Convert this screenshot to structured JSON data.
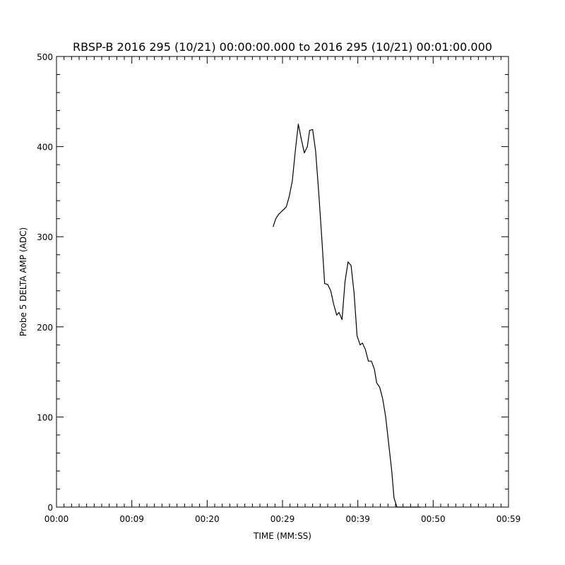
{
  "chart_data": {
    "type": "line",
    "title": "RBSP-B 2016 295 (10/21) 00:00:00.000 to 2016 295 (10/21) 00:01:00.000",
    "xlabel": "TIME (MM:SS)",
    "ylabel": "Probe 5 DELTA AMP (ADC)",
    "xlim": [
      0,
      60
    ],
    "ylim": [
      0,
      500
    ],
    "x_ticks": [
      {
        "value": 0,
        "label": "00:00"
      },
      {
        "value": 10,
        "label": "00:09"
      },
      {
        "value": 20,
        "label": "00:20"
      },
      {
        "value": 30,
        "label": "00:29"
      },
      {
        "value": 40,
        "label": "00:39"
      },
      {
        "value": 50,
        "label": "00:50"
      },
      {
        "value": 60,
        "label": "00:59"
      }
    ],
    "y_ticks": [
      {
        "value": 0,
        "label": "0"
      },
      {
        "value": 100,
        "label": "100"
      },
      {
        "value": 200,
        "label": "200"
      },
      {
        "value": 300,
        "label": "300"
      },
      {
        "value": 400,
        "label": "400"
      },
      {
        "value": 500,
        "label": "500"
      }
    ],
    "grid": false,
    "line_color": "#000000",
    "series": [
      {
        "x": [
          28.75,
          29.1,
          29.5,
          30.0,
          30.5,
          30.9,
          31.3,
          31.7,
          32.1,
          32.5,
          32.9,
          33.3,
          33.6,
          34.0,
          34.4,
          34.8,
          35.2,
          35.6,
          36.0,
          36.4,
          36.8,
          37.2,
          37.5,
          37.9,
          38.3,
          38.7,
          39.1,
          39.5,
          39.9,
          40.3,
          40.6,
          41.0,
          41.4,
          41.8,
          42.2,
          42.5,
          42.9,
          43.3,
          43.7,
          44.1,
          44.5,
          44.8,
          45.2,
          45.6,
          46.0,
          46.4,
          46.8,
          47.2,
          47.6,
          48.0,
          48.3
        ],
        "values": [
          311,
          320,
          325,
          329,
          333,
          345,
          362,
          395,
          425,
          408,
          393,
          400,
          418,
          419,
          395,
          350,
          300,
          248,
          247,
          240,
          225,
          213,
          216,
          208,
          250,
          272,
          268,
          238,
          190,
          180,
          182,
          175,
          162,
          162,
          153,
          138,
          133,
          120,
          100,
          70,
          40,
          10,
          0,
          0,
          0,
          0,
          0,
          0,
          0,
          0,
          0
        ]
      }
    ]
  }
}
